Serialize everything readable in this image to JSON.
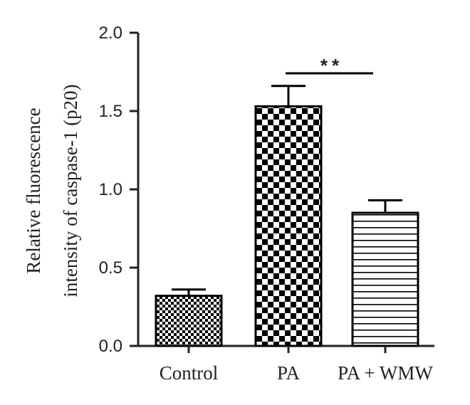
{
  "chart_data": {
    "type": "bar",
    "categories": [
      "Control",
      "PA",
      "PA + WMW"
    ],
    "values": [
      0.32,
      1.53,
      0.85
    ],
    "errors": [
      0.04,
      0.13,
      0.08
    ],
    "patterns": [
      "small-checker",
      "large-checker",
      "horizontal-lines"
    ],
    "ylabel_lines": [
      "Relative fluorescence",
      "intensity of caspase-1 (p20)"
    ],
    "ylim": [
      0,
      2.0
    ],
    "yticks": [
      "0.0",
      "0.5",
      "1.0",
      "1.5",
      "2.0"
    ],
    "significance": {
      "label": "**",
      "between": [
        "PA",
        "PA + WMW"
      ]
    },
    "grid": false,
    "colors": {
      "bar_fill": "#000000",
      "bar_bg": "#ffffff",
      "axis": "#222222"
    }
  }
}
